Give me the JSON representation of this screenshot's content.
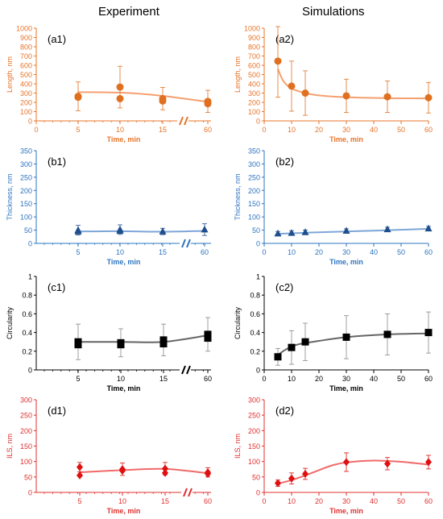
{
  "columns": {
    "left": "Experiment",
    "right": "Simulations"
  },
  "colors": {
    "orange": "#e07020",
    "orange_fit": "#f4a070",
    "blue": "#1f4e8c",
    "blue_fit": "#7ea6d8",
    "black": "#000000",
    "gray_fit": "#666666",
    "red": "#e01010",
    "red_fit": "#f06a6a",
    "axis_orange": "#e8742a",
    "axis_blue": "#2e74c0",
    "axis_black": "#000000",
    "axis_red": "#e03030"
  },
  "chart_data": [
    {
      "id": "a1",
      "type": "scatter",
      "panel_label": "(a1)",
      "ylabel": "Length, nm",
      "xlabel": "Time, min",
      "ylim": [
        0,
        1000
      ],
      "yticks": [
        0,
        100,
        200,
        300,
        400,
        500,
        600,
        700,
        800,
        900,
        1000
      ],
      "x_ticks": [
        "0",
        "5",
        "10",
        "15",
        "60"
      ],
      "axis_break": true,
      "marker": "circle",
      "points": [
        {
          "x": "5",
          "y": 265,
          "err": 155
        },
        {
          "x": "5",
          "y": 255
        },
        {
          "x": "10",
          "y": 365,
          "err": 225
        },
        {
          "x": "10",
          "y": 240
        },
        {
          "x": "15",
          "y": 240,
          "err": 120
        },
        {
          "x": "15",
          "y": 215
        },
        {
          "x": "60",
          "y": 210,
          "err": 120
        },
        {
          "x": "60",
          "y": 185
        }
      ],
      "fit": [
        {
          "x": "5",
          "y": 310
        },
        {
          "x": "10",
          "y": 305
        },
        {
          "x": "15",
          "y": 270
        },
        {
          "x": "60",
          "y": 205
        }
      ]
    },
    {
      "id": "a2",
      "type": "scatter",
      "panel_label": "(a2)",
      "ylabel": "Length, nm",
      "xlabel": "Time, min",
      "ylim": [
        0,
        1000
      ],
      "yticks": [
        0,
        100,
        200,
        300,
        400,
        500,
        600,
        700,
        800,
        900,
        1000
      ],
      "xlim": [
        0,
        60
      ],
      "xticks": [
        0,
        10,
        20,
        30,
        40,
        50,
        60
      ],
      "marker": "circle",
      "points": [
        {
          "x": 5,
          "y": 645,
          "err": 390
        },
        {
          "x": 10,
          "y": 375,
          "err": 270
        },
        {
          "x": 15,
          "y": 300,
          "err": 240
        },
        {
          "x": 30,
          "y": 270,
          "err": 180
        },
        {
          "x": 45,
          "y": 260,
          "err": 170
        },
        {
          "x": 60,
          "y": 250,
          "err": 165
        }
      ],
      "fit": [
        {
          "x": 5,
          "y": 560
        },
        {
          "x": 7,
          "y": 430
        },
        {
          "x": 10,
          "y": 350
        },
        {
          "x": 15,
          "y": 300
        },
        {
          "x": 20,
          "y": 275
        },
        {
          "x": 30,
          "y": 255
        },
        {
          "x": 45,
          "y": 245
        },
        {
          "x": 60,
          "y": 242
        }
      ]
    },
    {
      "id": "b1",
      "type": "scatter",
      "panel_label": "(b1)",
      "ylabel": "Thickness, nm",
      "xlabel": "Time, min",
      "ylim": [
        0,
        350
      ],
      "yticks": [
        0,
        50,
        100,
        150,
        200,
        250,
        300,
        350
      ],
      "x_ticks": [
        "5",
        "10",
        "15",
        "60"
      ],
      "axis_break": true,
      "marker": "triangle",
      "points": [
        {
          "x": "5",
          "y": 50,
          "err": 18
        },
        {
          "x": "5",
          "y": 45
        },
        {
          "x": "10",
          "y": 52,
          "err": 18
        },
        {
          "x": "10",
          "y": 47
        },
        {
          "x": "15",
          "y": 45,
          "err": 12
        },
        {
          "x": "60",
          "y": 52,
          "err": 22
        }
      ],
      "fit": [
        {
          "x": "5",
          "y": 45
        },
        {
          "x": "10",
          "y": 46
        },
        {
          "x": "15",
          "y": 44
        },
        {
          "x": "60",
          "y": 47
        }
      ]
    },
    {
      "id": "b2",
      "type": "scatter",
      "panel_label": "(b2)",
      "ylabel": "Thickness, nm",
      "xlabel": "Time, min",
      "ylim": [
        0,
        350
      ],
      "yticks": [
        0,
        50,
        100,
        150,
        200,
        250,
        300,
        350
      ],
      "xlim": [
        0,
        60
      ],
      "xticks": [
        0,
        10,
        20,
        30,
        40,
        50,
        60
      ],
      "marker": "triangle",
      "points": [
        {
          "x": 5,
          "y": 37,
          "err": 8
        },
        {
          "x": 10,
          "y": 39,
          "err": 8
        },
        {
          "x": 15,
          "y": 42,
          "err": 8
        },
        {
          "x": 30,
          "y": 47,
          "err": 8
        },
        {
          "x": 45,
          "y": 53,
          "err": 8
        },
        {
          "x": 60,
          "y": 56,
          "err": 8
        }
      ],
      "fit": [
        {
          "x": 5,
          "y": 36
        },
        {
          "x": 20,
          "y": 42
        },
        {
          "x": 40,
          "y": 48
        },
        {
          "x": 60,
          "y": 55
        }
      ]
    },
    {
      "id": "c1",
      "type": "scatter",
      "panel_label": "(c1)",
      "ylabel": "Circularity",
      "xlabel": "Time, min",
      "ylim": [
        0,
        1
      ],
      "yticks": [
        0,
        0.2,
        0.4,
        0.6,
        0.8,
        1
      ],
      "x_ticks": [
        "5",
        "10",
        "15",
        "60"
      ],
      "axis_break": true,
      "marker": "square",
      "points": [
        {
          "x": "5",
          "y": 0.3,
          "err": 0.19
        },
        {
          "x": "5",
          "y": 0.27
        },
        {
          "x": "10",
          "y": 0.29,
          "err": 0.15
        },
        {
          "x": "10",
          "y": 0.27
        },
        {
          "x": "15",
          "y": 0.32,
          "err": 0.17
        },
        {
          "x": "15",
          "y": 0.28
        },
        {
          "x": "60",
          "y": 0.38,
          "err": 0.18
        },
        {
          "x": "60",
          "y": 0.34
        }
      ],
      "fit": [
        {
          "x": "5",
          "y": 0.3
        },
        {
          "x": "10",
          "y": 0.3
        },
        {
          "x": "15",
          "y": 0.3
        },
        {
          "x": "60",
          "y": 0.37
        }
      ]
    },
    {
      "id": "c2",
      "type": "scatter",
      "panel_label": "(c2)",
      "ylabel": "Circularity",
      "xlabel": "Time, min",
      "ylim": [
        0,
        1
      ],
      "yticks": [
        0,
        0.2,
        0.4,
        0.6,
        0.8,
        1
      ],
      "xlim": [
        0,
        60
      ],
      "xticks": [
        0,
        10,
        20,
        30,
        40,
        50,
        60
      ],
      "marker": "square",
      "points": [
        {
          "x": 5,
          "y": 0.14,
          "err": 0.09
        },
        {
          "x": 10,
          "y": 0.24,
          "err": 0.18
        },
        {
          "x": 15,
          "y": 0.3,
          "err": 0.2
        },
        {
          "x": 30,
          "y": 0.35,
          "err": 0.23
        },
        {
          "x": 45,
          "y": 0.38,
          "err": 0.22
        },
        {
          "x": 60,
          "y": 0.4,
          "err": 0.22
        }
      ],
      "fit": [
        {
          "x": 5,
          "y": 0.16
        },
        {
          "x": 8,
          "y": 0.22
        },
        {
          "x": 12,
          "y": 0.27
        },
        {
          "x": 20,
          "y": 0.31
        },
        {
          "x": 30,
          "y": 0.35
        },
        {
          "x": 45,
          "y": 0.38
        },
        {
          "x": 60,
          "y": 0.39
        }
      ]
    },
    {
      "id": "d1",
      "type": "scatter",
      "panel_label": "(d1)",
      "ylabel": "ILS, nm",
      "xlabel": "Time, min",
      "ylim": [
        0,
        300
      ],
      "yticks": [
        0,
        50,
        100,
        150,
        200,
        250,
        300
      ],
      "x_ticks": [
        "5",
        "10",
        "15",
        "60"
      ],
      "axis_break": true,
      "marker": "diamond",
      "points": [
        {
          "x": "5",
          "y": 82,
          "err": 15
        },
        {
          "x": "5",
          "y": 55
        },
        {
          "x": "10",
          "y": 75,
          "err": 20
        },
        {
          "x": "10",
          "y": 70
        },
        {
          "x": "15",
          "y": 77,
          "err": 20
        },
        {
          "x": "15",
          "y": 63
        },
        {
          "x": "60",
          "y": 65,
          "err": 15
        },
        {
          "x": "60",
          "y": 60
        }
      ],
      "fit": [
        {
          "x": "5",
          "y": 65
        },
        {
          "x": "10",
          "y": 72
        },
        {
          "x": "15",
          "y": 76
        },
        {
          "x": "60",
          "y": 62
        }
      ]
    },
    {
      "id": "d2",
      "type": "scatter",
      "panel_label": "(d2)",
      "ylabel": "ILS, nm",
      "xlabel": "Time, min",
      "ylim": [
        0,
        300
      ],
      "yticks": [
        0,
        50,
        100,
        150,
        200,
        250,
        300
      ],
      "xlim": [
        0,
        60
      ],
      "xticks": [
        0,
        10,
        20,
        30,
        40,
        50,
        60
      ],
      "marker": "diamond",
      "points": [
        {
          "x": 5,
          "y": 30,
          "err": 10
        },
        {
          "x": 10,
          "y": 45,
          "err": 18
        },
        {
          "x": 15,
          "y": 60,
          "err": 18
        },
        {
          "x": 30,
          "y": 98,
          "err": 30
        },
        {
          "x": 45,
          "y": 93,
          "err": 20
        },
        {
          "x": 60,
          "y": 98,
          "err": 22
        }
      ],
      "fit": [
        {
          "x": 5,
          "y": 28
        },
        {
          "x": 10,
          "y": 40
        },
        {
          "x": 15,
          "y": 55
        },
        {
          "x": 20,
          "y": 72
        },
        {
          "x": 25,
          "y": 88
        },
        {
          "x": 30,
          "y": 97
        },
        {
          "x": 40,
          "y": 103
        },
        {
          "x": 50,
          "y": 99
        },
        {
          "x": 60,
          "y": 90
        }
      ]
    }
  ]
}
